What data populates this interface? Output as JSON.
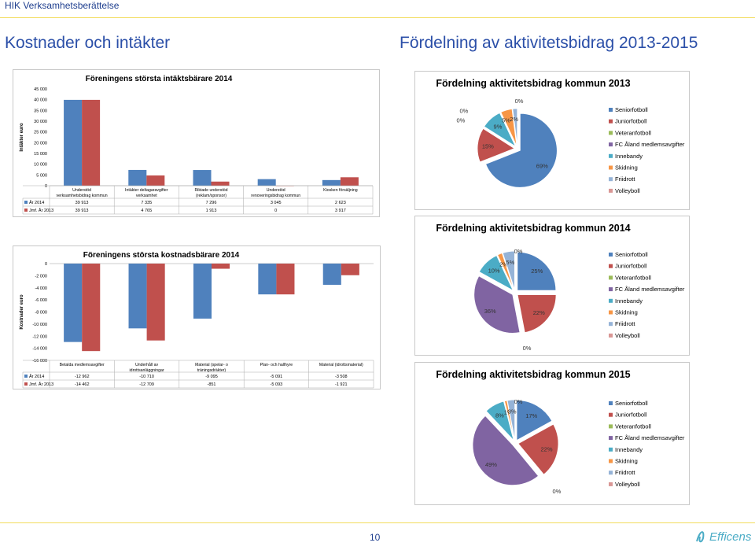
{
  "header": {
    "doc_title": "HIK Verksamhetsberättelse",
    "left_title": "Kostnader och intäkter",
    "right_title": "Fördelning av aktivitetsbidrag 2013-2015"
  },
  "footer": {
    "page_number": "10",
    "logo_text": "Efficens"
  },
  "colors": {
    "blue": "#4f81bd",
    "red": "#c0504d",
    "green": "#9bbb59",
    "purple": "#8064a2",
    "teal": "#4bacc6",
    "orange": "#f79646",
    "lightblue": "#95b3d7",
    "pink": "#d99694"
  },
  "chart_data": [
    {
      "type": "bar",
      "title": "Föreningens största intäktsbärare 2014",
      "ylabel": "Intäkter euro",
      "ylim": [
        0,
        45000
      ],
      "yticks": [
        "45 000",
        "40 000",
        "35 000",
        "30 000",
        "25 000",
        "20 000",
        "15 000",
        "10 000",
        "5 000",
        "0"
      ],
      "categories": [
        "Understöd verksamhetsbidrag kommun",
        "Intäkter deltagaravgifter verksamhet",
        "Riktade understöd (reklam/sponsor)",
        "Understöd renoveringsbidrag kommun",
        "Kiosken försäljning"
      ],
      "series": [
        {
          "name": "År 2014",
          "values": [
            39913,
            7335,
            7296,
            3045,
            2623
          ],
          "labels": [
            "39 913",
            "7 335",
            "7 296",
            "3 045",
            "2 623"
          ]
        },
        {
          "name": "Jmf. År 2013",
          "values": [
            39913,
            4765,
            1913,
            0,
            3917
          ],
          "labels": [
            "39 913",
            "4 765",
            "1 913",
            "0",
            "3 917"
          ]
        }
      ]
    },
    {
      "type": "bar",
      "title": "Föreningens största kostnadsbärare 2014",
      "ylabel": "Kostnader euro",
      "ylim": [
        -16000,
        0
      ],
      "yticks": [
        "0",
        "-2 000",
        "-4 000",
        "-6 000",
        "-8 000",
        "-10 000",
        "-12 000",
        "-14 000",
        "-16 000"
      ],
      "categories": [
        "Betalda medlemsavgifter",
        "Underhåll av idrottsanläggningar",
        "Material (spelar- o träningsdräkter)",
        "Plan- och hallhyre",
        "Material (idrottsmaterial)"
      ],
      "series": [
        {
          "name": "År 2014",
          "values": [
            -12962,
            -10710,
            -9095,
            -5091,
            -3508
          ],
          "labels": [
            "-12 962",
            "-10 710",
            "-9 095",
            "-5 091",
            "-3 508"
          ]
        },
        {
          "name": "Jmf. År 2013",
          "values": [
            -14462,
            -12709,
            -851,
            -5093,
            -1921
          ],
          "labels": [
            "-14 462",
            "-12 709",
            "-851",
            "-5 093",
            "-1 921"
          ]
        }
      ]
    },
    {
      "type": "pie",
      "title": "Fördelning aktivitetsbidrag kommun 2013",
      "legend": [
        "Seniorfotboll",
        "Juniorfotboll",
        "Veteranfotboll",
        "FC Åland medlemsavgifter",
        "Innebandy",
        "Skidning",
        "Friidrott",
        "Volleyboll"
      ],
      "values": [
        69,
        15,
        0,
        0,
        9,
        5,
        2,
        0
      ],
      "labels": [
        "69%",
        "15%",
        "0%",
        "0%",
        "9%",
        "5%",
        "2%",
        "0%"
      ]
    },
    {
      "type": "pie",
      "title": "Fördelning aktivitetsbidrag kommun 2014",
      "legend": [
        "Seniorfotboll",
        "Juniorfotboll",
        "Veteranfotboll",
        "FC Åland medlemsavgifter",
        "Innebandy",
        "Skidning",
        "Friidrott",
        "Volleyboll"
      ],
      "values": [
        25,
        22,
        0,
        36,
        10,
        2,
        5,
        0
      ],
      "labels": [
        "25%",
        "22%",
        "0%",
        "36%",
        "10%",
        "2%",
        "5%",
        "0%"
      ]
    },
    {
      "type": "pie",
      "title": "Fördelning aktivitetsbidrag kommun 2015",
      "legend": [
        "Seniorfotboll",
        "Juniorfotboll",
        "Veteranfotboll",
        "FC Åland medlemsavgifter",
        "Innebandy",
        "Skidning",
        "Friidrott",
        "Volleyboll"
      ],
      "values": [
        17,
        22,
        0,
        49,
        8,
        1,
        3,
        0
      ],
      "labels": [
        "17%",
        "22%",
        "0%",
        "49%",
        "8%",
        "1%",
        "3%",
        "0%"
      ]
    }
  ]
}
